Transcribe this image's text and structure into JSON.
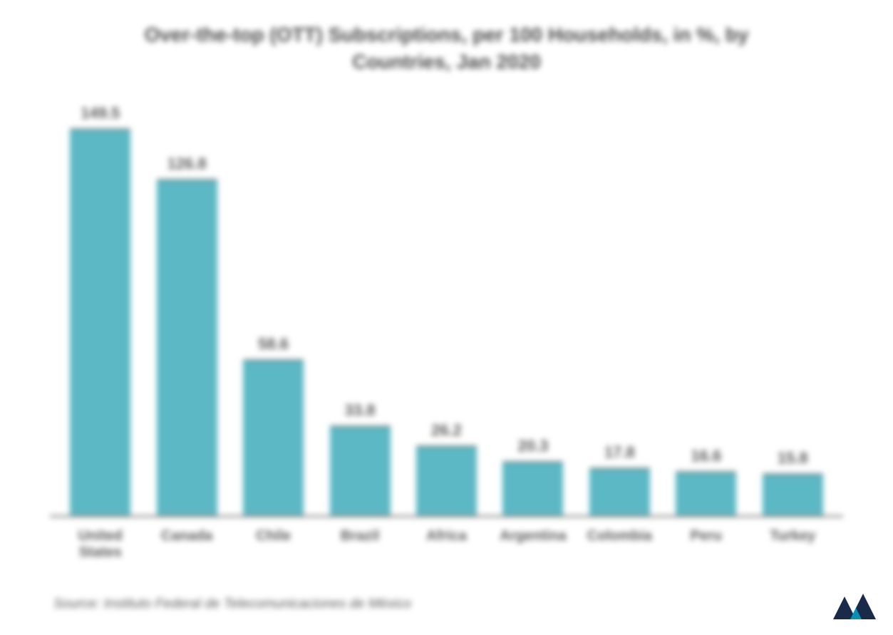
{
  "chart": {
    "type": "bar",
    "title": "Over-the-top (OTT) Subscriptions, per 100 Households, in %, by Countries, Jan 2020",
    "title_fontsize": 28,
    "title_color": "#4a4a4a",
    "categories": [
      "United States",
      "Canada",
      "Chile",
      "Brazil",
      "Africa",
      "Argentina",
      "Colombia",
      "Peru",
      "Turkey"
    ],
    "values": [
      149.5,
      126.8,
      58.6,
      33.8,
      26.2,
      20.3,
      17.8,
      16.6,
      15.8
    ],
    "value_labels": [
      "149.5",
      "126.8",
      "58.6",
      "33.8",
      "26.2",
      "20.3",
      "17.8",
      "16.6",
      "15.8"
    ],
    "bar_color": "#5bb8c4",
    "bar_border_color": "#888888",
    "axis_color": "#888888",
    "label_fontsize": 20,
    "label_color": "#5a5a5a",
    "value_fontsize": 22,
    "ylim": [
      0,
      155
    ],
    "background_color": "#ffffff",
    "bar_width": 0.7
  },
  "source": {
    "text": "Source: Instituto Federal de Telecomunicaciones de México",
    "fontsize": 19,
    "color": "#5a5a5a"
  },
  "logo": {
    "primary_color": "#1a2b4a",
    "accent_color": "#0891b2"
  }
}
